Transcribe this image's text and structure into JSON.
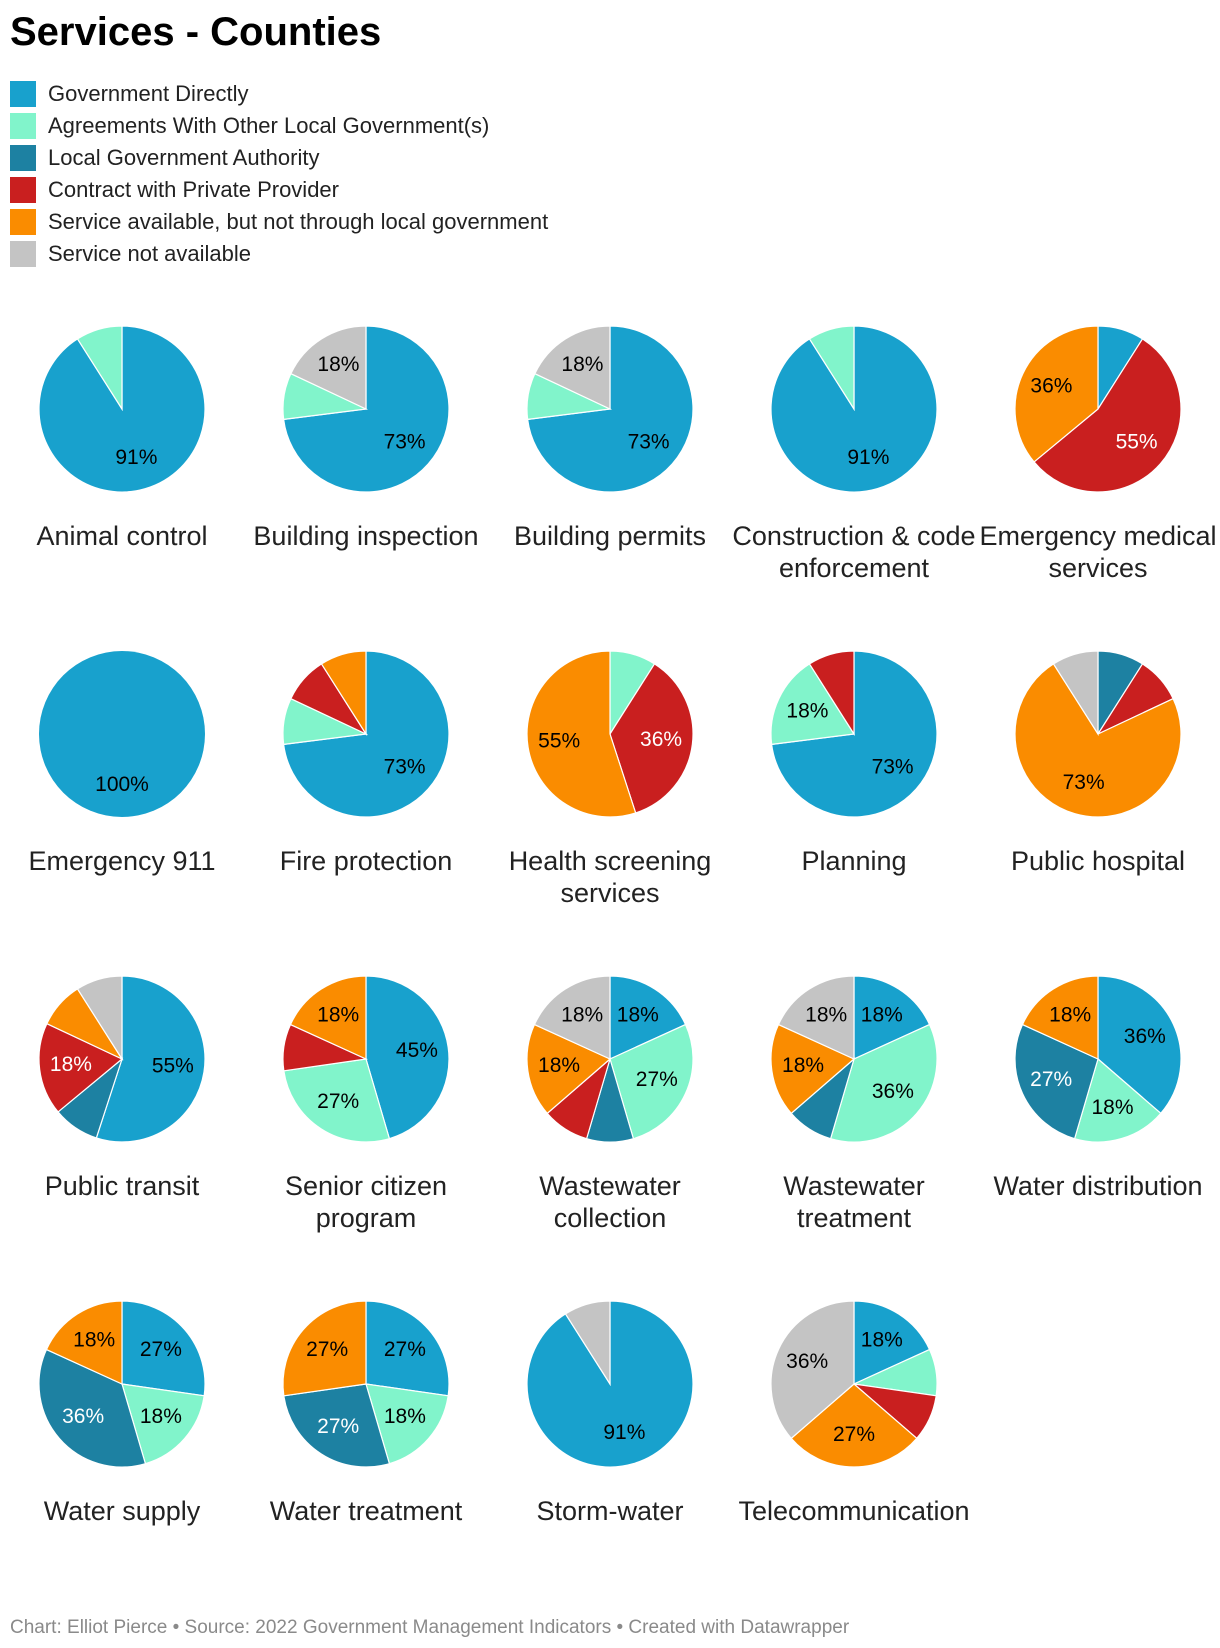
{
  "title": "Services - Counties",
  "legend": [
    {
      "label": "Government Directly",
      "color": "#18a1cd"
    },
    {
      "label": "Agreements With Other Local Government(s)",
      "color": "#81f4cb"
    },
    {
      "label": "Local Government Authority",
      "color": "#1d81a2"
    },
    {
      "label": "Contract with Private Provider",
      "color": "#c91f1f"
    },
    {
      "label": "Service available, but not through local government",
      "color": "#fa8c00"
    },
    {
      "label": "Service not available",
      "color": "#c4c4c4"
    }
  ],
  "footer": "Chart: Elliot Pierce • Source: 2022 Government Management Indicators • Created with Datawrapper",
  "chart_data": {
    "type": "pie",
    "unit": "%",
    "categories": [
      "Government Directly",
      "Agreements With Other Local Government(s)",
      "Local Government Authority",
      "Contract with Private Provider",
      "Service available, but not through local government",
      "Service not available"
    ],
    "pies": [
      {
        "name": "Animal control",
        "values": [
          91,
          9,
          0,
          0,
          0,
          0
        ],
        "labels": [
          "91%",
          "",
          "",
          "",
          "",
          ""
        ]
      },
      {
        "name": "Building inspection",
        "values": [
          73,
          9,
          0,
          0,
          0,
          18
        ],
        "labels": [
          "73%",
          "",
          "",
          "",
          "",
          "18%"
        ]
      },
      {
        "name": "Building permits",
        "values": [
          73,
          9,
          0,
          0,
          0,
          18
        ],
        "labels": [
          "73%",
          "",
          "",
          "",
          "",
          "18%"
        ]
      },
      {
        "name": "Construction & code enforcement",
        "values": [
          91,
          9,
          0,
          0,
          0,
          0
        ],
        "labels": [
          "91%",
          "",
          "",
          "",
          "",
          ""
        ]
      },
      {
        "name": "Emergency medical services",
        "values": [
          9,
          0,
          0,
          55,
          36,
          0
        ],
        "labels": [
          "",
          "",
          "",
          "55%",
          "36%",
          ""
        ]
      },
      {
        "name": "Emergency 911",
        "values": [
          100,
          0,
          0,
          0,
          0,
          0
        ],
        "labels": [
          "100%",
          "",
          "",
          "",
          "",
          ""
        ]
      },
      {
        "name": "Fire protection",
        "values": [
          73,
          9,
          0,
          9,
          9,
          0
        ],
        "labels": [
          "73%",
          "",
          "",
          "",
          "",
          ""
        ]
      },
      {
        "name": "Health screening services",
        "values": [
          0,
          9,
          0,
          36,
          55,
          0
        ],
        "labels": [
          "",
          "",
          "",
          "36%",
          "55%",
          ""
        ]
      },
      {
        "name": "Planning",
        "values": [
          73,
          18,
          0,
          9,
          0,
          0
        ],
        "labels": [
          "73%",
          "18%",
          "",
          "",
          "",
          ""
        ]
      },
      {
        "name": "Public hospital",
        "values": [
          0,
          0,
          9,
          9,
          73,
          9
        ],
        "labels": [
          "",
          "",
          "",
          "",
          "73%",
          ""
        ]
      },
      {
        "name": "Public transit",
        "values": [
          55,
          0,
          9,
          18,
          9,
          9
        ],
        "labels": [
          "55%",
          "",
          "",
          "18%",
          "",
          ""
        ]
      },
      {
        "name": "Senior citizen program",
        "values": [
          45,
          27,
          0,
          9,
          18,
          0
        ],
        "labels": [
          "45%",
          "27%",
          "",
          "",
          "18%",
          ""
        ]
      },
      {
        "name": "Wastewater collection",
        "values": [
          18,
          27,
          9,
          9,
          18,
          18
        ],
        "labels": [
          "18%",
          "27%",
          "",
          "",
          "18%",
          "18%"
        ]
      },
      {
        "name": "Wastewater treatment",
        "values": [
          18,
          36,
          9,
          0,
          18,
          18
        ],
        "labels": [
          "18%",
          "36%",
          "",
          "",
          "18%",
          "18%"
        ]
      },
      {
        "name": "Water distribution",
        "values": [
          36,
          18,
          27,
          0,
          18,
          0
        ],
        "labels": [
          "36%",
          "18%",
          "27%",
          "",
          "18%",
          ""
        ]
      },
      {
        "name": "Water supply",
        "values": [
          27,
          18,
          36,
          0,
          18,
          0
        ],
        "labels": [
          "27%",
          "18%",
          "36%",
          "",
          "18%",
          ""
        ]
      },
      {
        "name": "Water treatment",
        "values": [
          27,
          18,
          27,
          0,
          27,
          0
        ],
        "labels": [
          "27%",
          "18%",
          "27%",
          "",
          "27%",
          ""
        ]
      },
      {
        "name": "Storm-water",
        "values": [
          91,
          0,
          0,
          0,
          0,
          9
        ],
        "labels": [
          "91%",
          "",
          "",
          "",
          "",
          ""
        ]
      },
      {
        "name": "Telecommunication",
        "values": [
          18,
          9,
          0,
          9,
          27,
          36
        ],
        "labels": [
          "18%",
          "",
          "",
          "",
          "27%",
          "36%"
        ]
      }
    ]
  }
}
